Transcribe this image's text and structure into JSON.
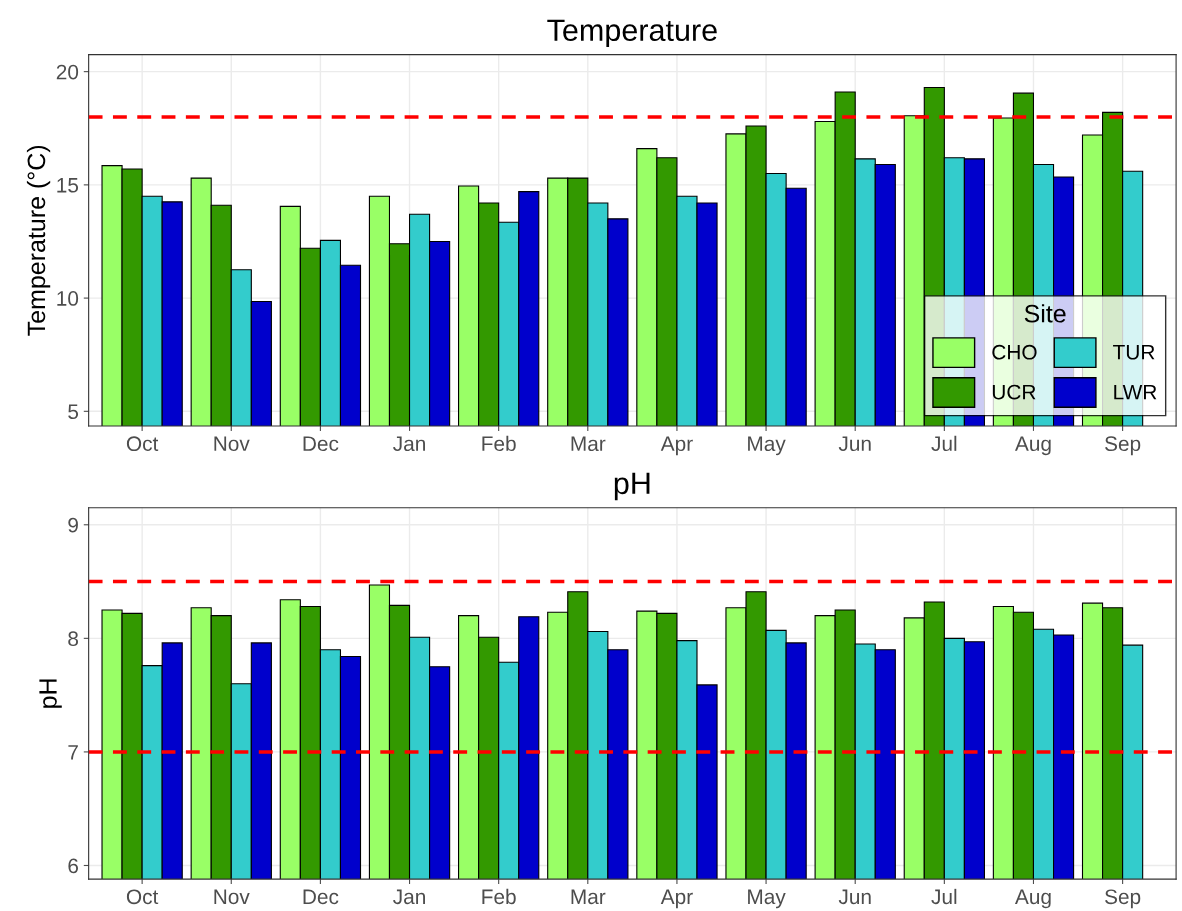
{
  "chart_data": [
    {
      "type": "bar",
      "title": "Temperature",
      "ylabel": "Temperature (°C)",
      "legend_title": "Site",
      "legend": "bottom right",
      "grid": true,
      "categories": [
        "Oct",
        "Nov",
        "Dec",
        "Jan",
        "Feb",
        "Mar",
        "Apr",
        "May",
        "Jun",
        "Jul",
        "Aug",
        "Sep"
      ],
      "ylim": [
        4.35,
        20.75
      ],
      "yticks": [
        5,
        10,
        15,
        20
      ],
      "ref_lines": [
        {
          "axis": "y",
          "value": 18,
          "color": "#ff0000",
          "line_style": "dashed"
        }
      ],
      "series": [
        {
          "name": "CHO",
          "color": "#99ff66",
          "values": [
            15.85,
            15.3,
            14.05,
            14.5,
            14.95,
            15.3,
            16.6,
            17.25,
            17.8,
            18.05,
            17.95,
            17.2
          ]
        },
        {
          "name": "UCR",
          "color": "#339900",
          "values": [
            15.7,
            14.1,
            12.2,
            12.4,
            14.2,
            15.3,
            16.2,
            17.6,
            19.1,
            19.3,
            19.05,
            18.2
          ]
        },
        {
          "name": "TUR",
          "color": "#33cccc",
          "values": [
            14.5,
            11.25,
            12.55,
            13.7,
            13.35,
            14.2,
            14.5,
            15.5,
            16.15,
            16.2,
            15.9,
            15.6
          ]
        },
        {
          "name": "LWR",
          "color": "#0000cc",
          "values": [
            14.25,
            9.85,
            11.45,
            12.5,
            14.7,
            13.5,
            14.2,
            14.85,
            15.9,
            16.15,
            15.35,
            null
          ]
        }
      ]
    },
    {
      "type": "bar",
      "title": "pH",
      "ylabel": "pH",
      "legend": false,
      "grid": true,
      "categories": [
        "Oct",
        "Nov",
        "Dec",
        "Jan",
        "Feb",
        "Mar",
        "Apr",
        "May",
        "Jun",
        "Jul",
        "Aug",
        "Sep"
      ],
      "ylim": [
        5.88,
        9.15
      ],
      "yticks": [
        6,
        7,
        8,
        9
      ],
      "ref_lines": [
        {
          "axis": "y",
          "value": 8.5,
          "color": "#ff0000",
          "line_style": "dashed"
        },
        {
          "axis": "y",
          "value": 7,
          "color": "#ff0000",
          "line_style": "dashed"
        }
      ],
      "series": [
        {
          "color": "#99ff66",
          "values": [
            8.25,
            8.27,
            8.34,
            8.47,
            8.2,
            8.23,
            8.24,
            8.27,
            8.2,
            8.18,
            8.28,
            8.31
          ]
        },
        {
          "color": "#339900",
          "values": [
            8.22,
            8.2,
            8.28,
            8.29,
            8.01,
            8.41,
            8.22,
            8.41,
            8.25,
            8.32,
            8.23,
            8.27
          ]
        },
        {
          "color": "#33cccc",
          "values": [
            7.76,
            7.6,
            7.9,
            8.01,
            7.79,
            8.06,
            7.98,
            8.07,
            7.95,
            8.0,
            8.08,
            7.94
          ]
        },
        {
          "color": "#0000cc",
          "values": [
            7.96,
            7.96,
            7.84,
            7.75,
            8.19,
            7.9,
            7.59,
            7.96,
            7.9,
            7.97,
            8.03,
            null
          ]
        }
      ]
    }
  ]
}
